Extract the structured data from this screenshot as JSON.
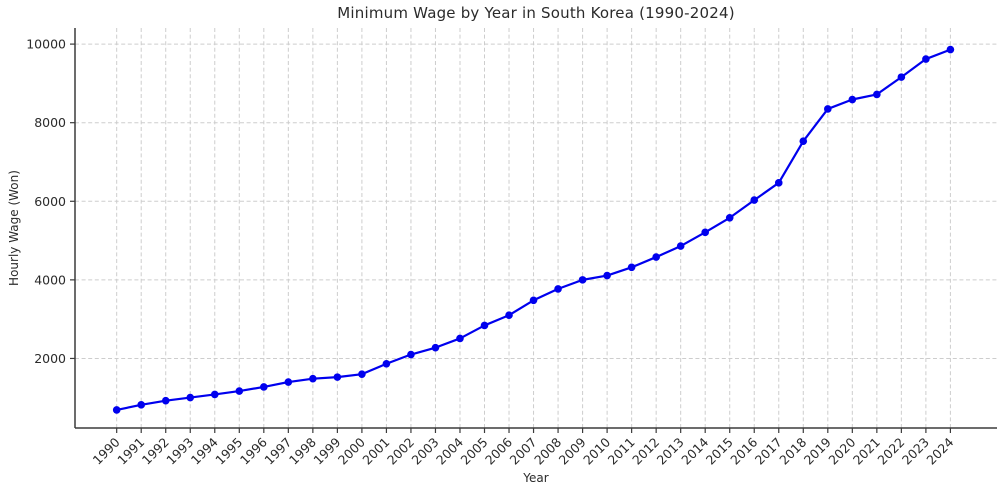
{
  "chart_data": {
    "type": "line",
    "title": "Minimum Wage by Year in South Korea (1990-2024)",
    "xlabel": "Year",
    "ylabel": "Hourly Wage (Won)",
    "x": [
      1990,
      1991,
      1992,
      1993,
      1994,
      1995,
      1996,
      1997,
      1998,
      1999,
      2000,
      2001,
      2002,
      2003,
      2004,
      2005,
      2006,
      2007,
      2008,
      2009,
      2010,
      2011,
      2012,
      2013,
      2014,
      2015,
      2016,
      2017,
      2018,
      2019,
      2020,
      2021,
      2022,
      2023,
      2024
    ],
    "series": [
      {
        "name": "Minimum Wage",
        "values": [
          690,
          820,
          925,
          1005,
          1085,
          1170,
          1275,
          1400,
          1485,
          1525,
          1600,
          1865,
          2100,
          2275,
          2510,
          2840,
          3100,
          3480,
          3770,
          4000,
          4110,
          4320,
          4580,
          4860,
          5210,
          5580,
          6030,
          6470,
          7530,
          8350,
          8590,
          8720,
          9160,
          9620,
          9860
        ]
      }
    ],
    "yticks": [
      2000,
      4000,
      6000,
      8000,
      10000
    ],
    "xlim": [
      1988.3,
      2025.9
    ],
    "ylim": [
      230,
      10410
    ],
    "grid": true,
    "legend": "none",
    "marker": "circle",
    "line_color": "#0000ee",
    "grid_color": "#cdcdcd",
    "axis_color": "#3b3b3b",
    "tick_text_color": "#2b2b2b"
  }
}
